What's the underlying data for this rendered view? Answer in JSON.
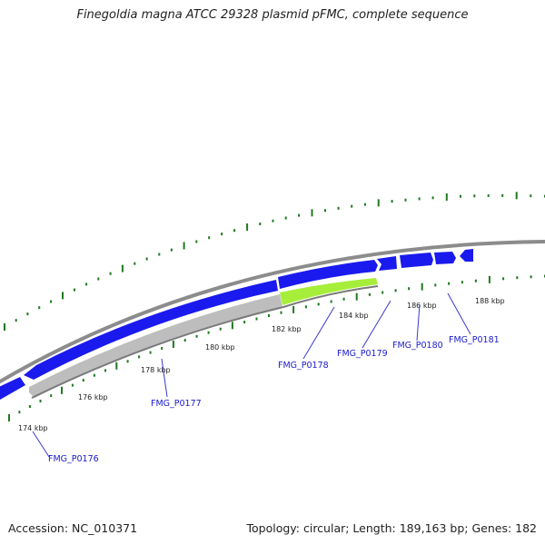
{
  "title": "Finegoldia magna ATCC 29328 plasmid pFMC, complete sequence",
  "footer": {
    "accession": "Accession: NC_010371",
    "summary": "Topology: circular; Length: 189,163 bp; Genes: 182"
  },
  "colors": {
    "backbone": "#8c8c8c",
    "gene_forward": "#1a1aee",
    "gene_selected": "#a6ee3a",
    "gene_reverse": "#bdbdbd",
    "tick": "#1f7a1f",
    "gene_label": "#1a1acc",
    "callout_line": "#3a3ad0"
  },
  "ticks": [
    {
      "label": "174 kbp"
    },
    {
      "label": "176 kbp"
    },
    {
      "label": "178 kbp"
    },
    {
      "label": "180 kbp"
    },
    {
      "label": "182 kbp"
    },
    {
      "label": "184 kbp"
    },
    {
      "label": "186 kbp"
    },
    {
      "label": "188 kbp"
    }
  ],
  "genes": [
    {
      "label": "FMG_P0176"
    },
    {
      "label": "FMG_P0177"
    },
    {
      "label": "FMG_P0178"
    },
    {
      "label": "FMG_P0179"
    },
    {
      "label": "FMG_P0180"
    },
    {
      "label": "FMG_P0181"
    }
  ]
}
